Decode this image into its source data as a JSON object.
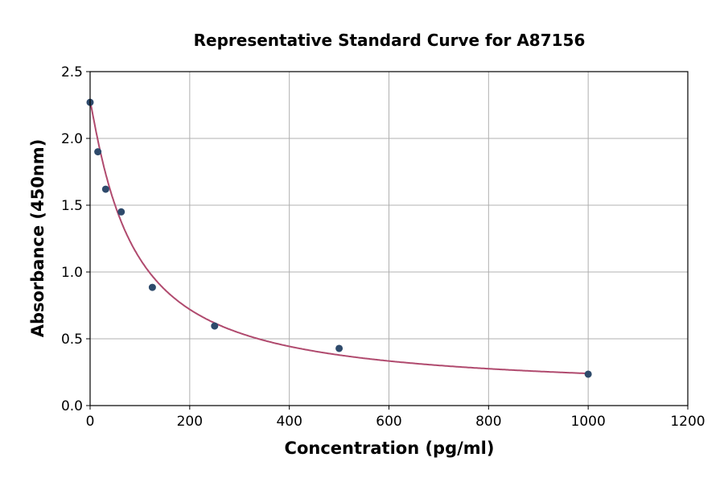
{
  "chart_data": {
    "type": "scatter",
    "title": "Representative Standard Curve for A87156",
    "xlabel": "Concentration (pg/ml)",
    "ylabel": "Absorbance (450nm)",
    "xlim": [
      0,
      1200
    ],
    "ylim": [
      0,
      2.5
    ],
    "xticks": [
      "0",
      "200",
      "400",
      "600",
      "800",
      "1000",
      "1200"
    ],
    "yticks": [
      "0.0",
      "0.5",
      "1.0",
      "1.5",
      "2.0",
      "2.5"
    ],
    "grid": true,
    "points": {
      "x": [
        0,
        15.6,
        31.25,
        62.5,
        125,
        250,
        500,
        1000
      ],
      "y": [
        2.27,
        1.9,
        1.62,
        1.45,
        0.885,
        0.596,
        0.428,
        0.235
      ]
    },
    "fit": {
      "model": "4PL",
      "a": 2.28,
      "b": 1.09,
      "c": 85.8,
      "d": 0.1
    },
    "colors": {
      "points": "#2e4a6b",
      "curve": "#b04a6e",
      "grid": "#b0b0b0"
    }
  }
}
